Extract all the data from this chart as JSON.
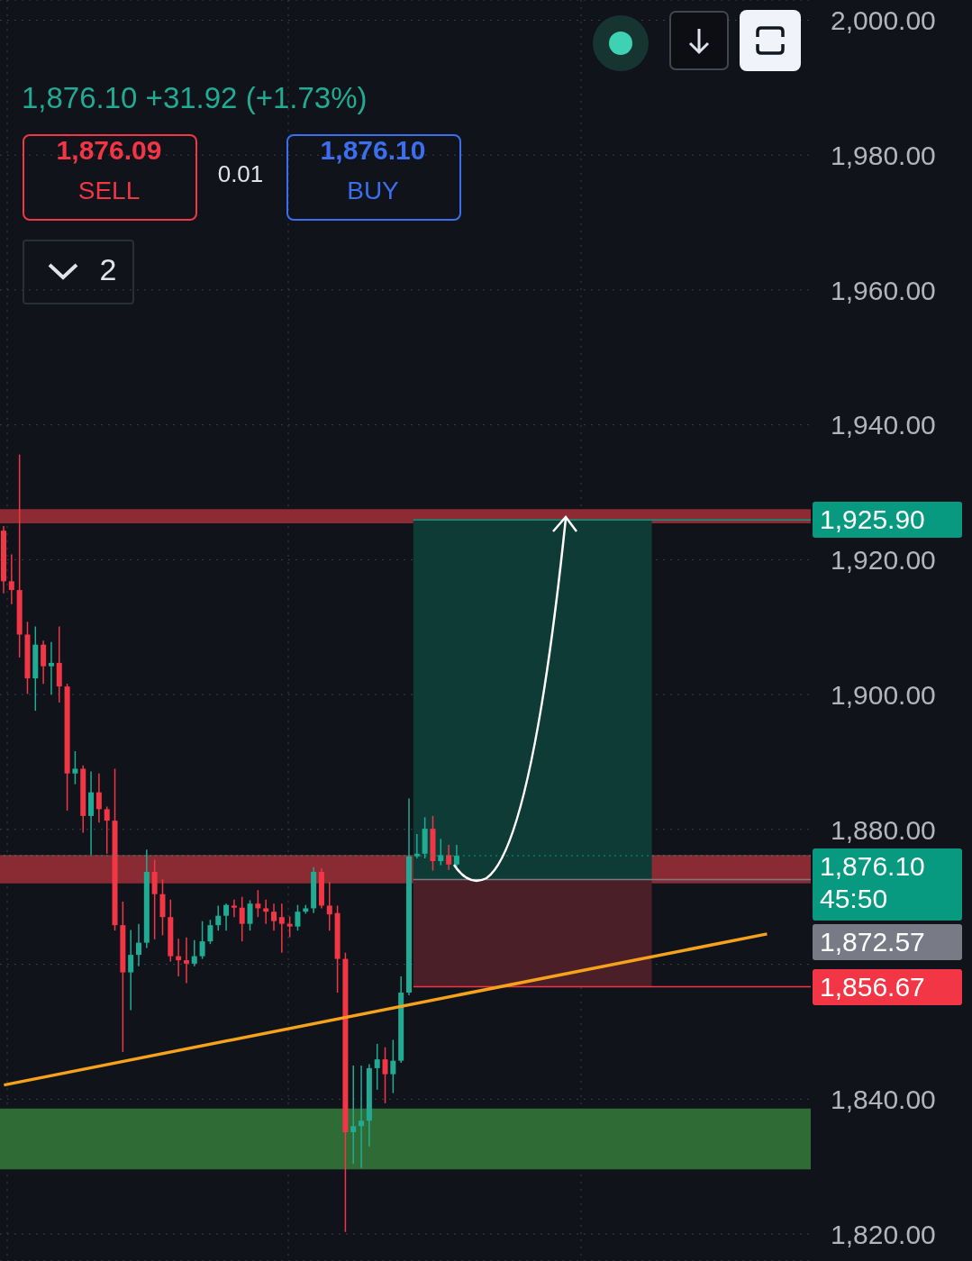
{
  "chart_data": {
    "type": "candlestick",
    "subtitle": "1,876.10  +31.92 (+1.73%)",
    "annotations": [
      "1,876.09",
      "SELL",
      "0.01",
      "1,876.10",
      "BUY",
      "2"
    ],
    "categories": [
      null,
      null,
      null,
      null,
      null,
      null,
      null,
      null,
      null,
      null,
      null,
      null,
      null,
      null,
      null,
      null,
      null,
      null,
      null,
      null,
      null,
      null,
      null,
      null,
      null,
      null,
      null,
      null,
      null,
      null,
      null,
      null,
      null,
      null,
      null,
      null,
      null,
      null,
      null,
      null,
      null,
      null,
      null,
      null,
      null,
      null,
      null,
      null,
      null,
      null,
      null,
      null,
      null,
      null,
      null,
      null,
      null,
      null,
      null,
      null,
      null,
      null,
      null,
      null,
      null,
      null,
      null,
      null,
      null,
      null,
      null,
      null,
      null,
      null,
      null,
      null,
      null,
      null,
      null,
      null,
      null,
      null,
      null,
      null,
      null,
      null,
      null,
      null,
      null,
      null,
      null,
      null,
      null,
      null,
      null,
      null,
      null,
      null,
      null,
      null,
      null,
      null
    ],
    "ohlc": [
      [
        1924.3,
        1925,
        1915,
        1916.8
      ],
      [
        1916.8,
        1920.8,
        1913.4,
        1915.5
      ],
      [
        1915.5,
        1935.6,
        1905.5,
        1908.9
      ],
      [
        1908.9,
        1910.8,
        1900.1,
        1902.4
      ],
      [
        1902.4,
        1910.1,
        1897.6,
        1907.4
      ],
      [
        1907.4,
        1908,
        1901.6,
        1904.2
      ],
      [
        1904.2,
        1907.8,
        1900,
        1904.7
      ],
      [
        1904.7,
        1910.1,
        1898.8,
        1901.2
      ],
      [
        1901.2,
        1901.6,
        1882.8,
        1888.3
      ],
      [
        1888.3,
        1891.6,
        1886.7,
        1889
      ],
      [
        1889,
        1889.5,
        1879.5,
        1882
      ],
      [
        1882,
        1888.6,
        1876.2,
        1885.5
      ],
      [
        1885.5,
        1888.3,
        1881,
        1883
      ],
      [
        1883,
        1883.4,
        1876.4,
        1881.3
      ],
      [
        1881.3,
        1889,
        1865,
        1865.8
      ],
      [
        1865.8,
        1869.3,
        1847,
        1858.8
      ],
      [
        1858.8,
        1865.1,
        1853.2,
        1861.4
      ],
      [
        1861.4,
        1866,
        1859.7,
        1863.2
      ],
      [
        1863.2,
        1877,
        1862.4,
        1873.7
      ],
      [
        1873.7,
        1875.5,
        1863.7,
        1870.4
      ],
      [
        1870.4,
        1872.6,
        1864.3,
        1867
      ],
      [
        1867,
        1869.6,
        1860.4,
        1861.2
      ],
      [
        1861.2,
        1863.8,
        1858.2,
        1860.6
      ],
      [
        1860.6,
        1864,
        1857.2,
        1860.1
      ],
      [
        1860.1,
        1863.6,
        1859.7,
        1861.2
      ],
      [
        1861.2,
        1866.4,
        1860.8,
        1863.4
      ],
      [
        1863.4,
        1866.6,
        1863,
        1865.8
      ],
      [
        1865.8,
        1868.7,
        1865,
        1867.2
      ],
      [
        1867.2,
        1869,
        1865,
        1868.8
      ],
      [
        1868.7,
        1869.6,
        1867,
        1868.4
      ],
      [
        1868.4,
        1870,
        1863.4,
        1866
      ],
      [
        1866,
        1869.5,
        1865,
        1869
      ],
      [
        1869,
        1871,
        1867,
        1868.3
      ],
      [
        1868.3,
        1869.6,
        1866,
        1867.8
      ],
      [
        1867.8,
        1869,
        1865,
        1866.4
      ],
      [
        1867,
        1869,
        1861.7,
        1866
      ],
      [
        1866,
        1867.1,
        1864,
        1865.6
      ],
      [
        1865.6,
        1868.8,
        1865,
        1867.8
      ],
      [
        1867.8,
        1868.8,
        1867.5,
        1868.3
      ],
      [
        1868.3,
        1874.4,
        1867.6,
        1873.7
      ],
      [
        1873.7,
        1874.2,
        1868.3,
        1868.7
      ],
      [
        1868.7,
        1872.2,
        1865,
        1867.4
      ],
      [
        1867.6,
        1868.7,
        1855.8,
        1860.8
      ],
      [
        1860.8,
        1861.7,
        1820.3,
        1835.1
      ],
      [
        1835.1,
        1845,
        1830.4,
        1836
      ],
      [
        1836,
        1845,
        1829.8,
        1836.8
      ],
      [
        1836.8,
        1845.2,
        1833,
        1844.6
      ],
      [
        1844.6,
        1848.2,
        1841.4,
        1845.9
      ],
      [
        1845.9,
        1847.7,
        1839.4,
        1843.7
      ],
      [
        1843.7,
        1848.8,
        1840.9,
        1845.7
      ],
      [
        1845.7,
        1858.2,
        1845.4,
        1855.8
      ],
      [
        1855.8,
        1884.6,
        1855.4,
        1876
      ],
      [
        1876,
        1879.3,
        1875.7,
        1876.4
      ],
      [
        1876.4,
        1881.8,
        1875.7,
        1880.1
      ],
      [
        1880.1,
        1882,
        1873.9,
        1875.3
      ],
      [
        1875.3,
        1878.6,
        1874.7,
        1876.2
      ],
      [
        1876.2,
        1877.7,
        1874,
        1874.8
      ],
      [
        1874.8,
        1877.7,
        1874.4,
        1876.1
      ],
      null,
      null,
      null,
      null,
      null,
      null,
      null,
      null,
      null,
      null,
      null,
      null,
      null,
      null,
      null,
      null,
      null,
      null,
      null,
      null,
      null,
      null,
      null,
      null,
      null,
      null,
      null,
      null,
      null,
      null,
      null,
      null,
      null,
      null,
      null,
      null,
      null,
      null,
      null,
      null,
      null,
      null,
      null,
      null
    ],
    "series": [
      {
        "type": "line",
        "color": "#f7a21b",
        "values": [
          1842.1,
          null,
          null,
          null,
          null,
          null,
          null,
          null,
          null,
          null,
          null,
          null,
          null,
          null,
          null,
          null,
          null,
          null,
          null,
          null,
          null,
          null,
          null,
          null,
          null,
          null,
          null,
          null,
          null,
          null,
          null,
          null,
          null,
          null,
          null,
          null,
          null,
          null,
          null,
          null,
          null,
          null,
          null,
          null,
          null,
          null,
          null,
          null,
          null,
          null,
          null,
          null,
          null,
          null,
          null,
          null,
          null,
          null,
          null,
          null,
          null,
          null,
          null,
          null,
          null,
          null,
          null,
          null,
          null,
          null,
          null,
          null,
          null,
          null,
          null,
          null,
          null,
          null,
          null,
          null,
          null,
          null,
          null,
          null,
          null,
          null,
          null,
          null,
          null,
          null,
          null,
          null,
          null,
          null,
          null,
          null,
          1864.5,
          null,
          null,
          null,
          null,
          null
        ]
      }
    ],
    "ylim": [
      1816,
      2003
    ],
    "yticks": [
      {
        "value": 1820,
        "label": "1,820.00"
      },
      {
        "value": 1840,
        "label": "1,840.00"
      },
      {
        "value": 1860,
        "label": null
      },
      {
        "value": 1880,
        "label": "1,880.00"
      },
      {
        "value": 1900,
        "label": "1,900.00"
      },
      {
        "value": 1920,
        "label": "1,920.00"
      },
      {
        "value": 1940,
        "label": "1,940.00"
      },
      {
        "value": 1960,
        "label": "1,960.00"
      },
      {
        "value": 1980,
        "label": "1,980.00"
      },
      {
        "value": 2000,
        "label": "2,000.00"
      }
    ],
    "grid": true,
    "bands": [
      {
        "axis": "y",
        "from": 1925.4,
        "to": 1927.5,
        "color": "#8e2a33"
      },
      {
        "axis": "y",
        "from": 1872.0,
        "to": 1876.2,
        "color": "#8a2b33"
      },
      {
        "axis": "y",
        "from": 1829.6,
        "to": 1838.6,
        "color": "#2f6b35"
      },
      {
        "axis": "y",
        "from": 1872.57,
        "to": 1925.9,
        "color": "#0f3b36"
      },
      {
        "axis": "y",
        "from": 1856.67,
        "to": 1872.57,
        "color": "#4a1f28"
      }
    ],
    "ref_lines": [
      {
        "axis": "y",
        "value": 1925.9,
        "label": "1,925.90",
        "color": "#089981"
      },
      {
        "axis": "y",
        "value": 1876.1,
        "label": "1,876.10 45:50",
        "color": "#089981",
        "line_style": "dotted"
      },
      {
        "axis": "y",
        "value": 1872.57,
        "label": "1,872.57",
        "color": "#787b86"
      },
      {
        "axis": "y",
        "value": 1856.67,
        "label": "1,856.67",
        "color": "#f23645"
      }
    ]
  }
}
